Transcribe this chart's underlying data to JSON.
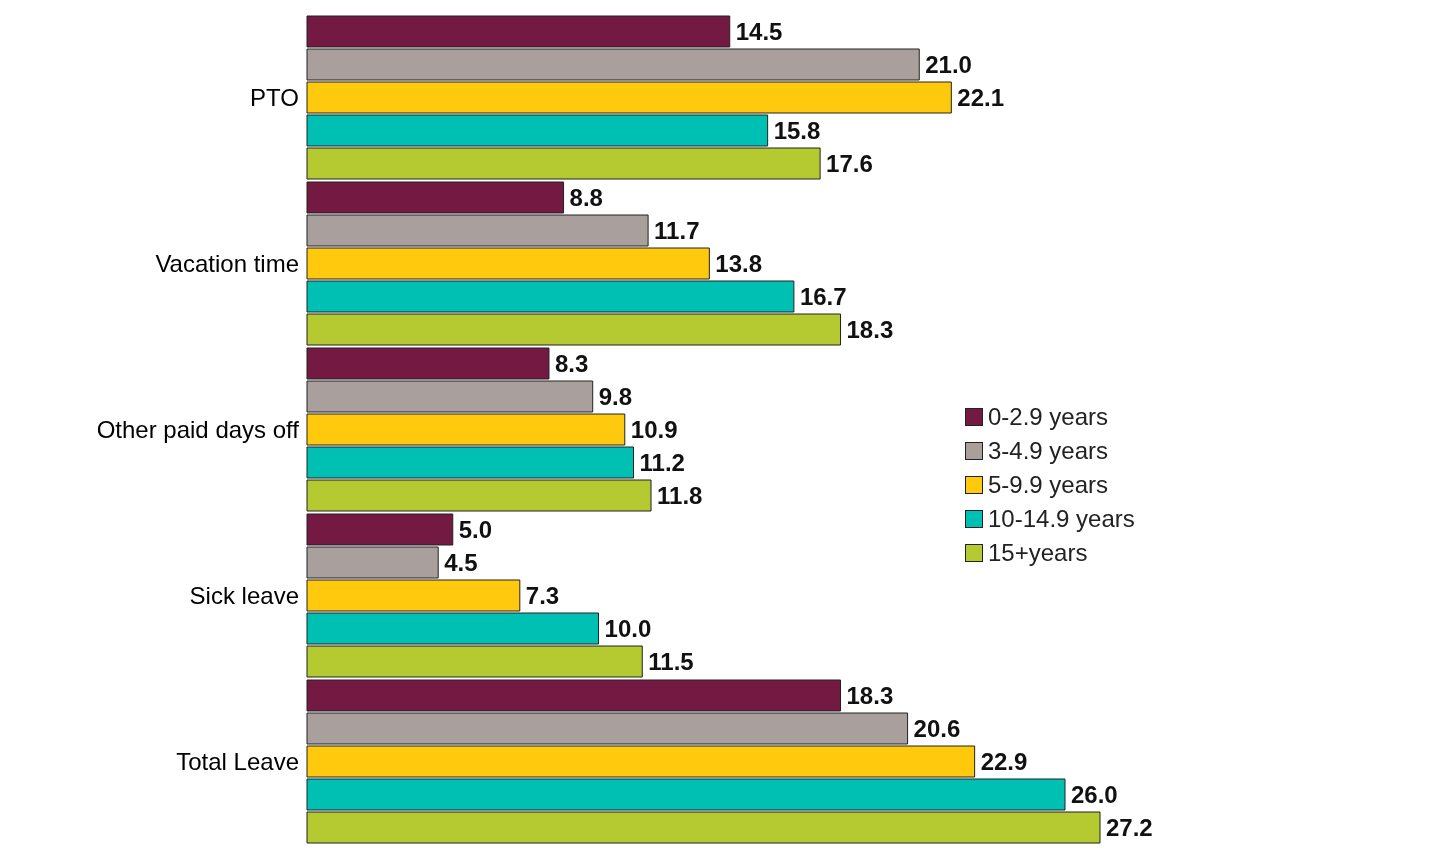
{
  "chart_data": {
    "type": "bar",
    "orientation": "horizontal",
    "legend": "right",
    "categories": [
      "PTO",
      "Vacation time",
      "Other paid days off",
      "Sick leave",
      "Total Leave"
    ],
    "series": [
      {
        "name": "0-2.9 years",
        "color": "#731942",
        "values": [
          14.5,
          8.8,
          8.3,
          5.0,
          18.3
        ],
        "value_labels": [
          "14.5",
          "8.8",
          "8.3",
          "5.0",
          "18.3"
        ]
      },
      {
        "name": "3-4.9 years",
        "color": "#a9a09e",
        "values": [
          21.0,
          11.7,
          9.8,
          4.5,
          20.6
        ],
        "value_labels": [
          "21.0",
          "11.7",
          "9.8",
          "4.5",
          "20.6"
        ]
      },
      {
        "name": "5-9.9 years",
        "color": "#ffc90e",
        "values": [
          22.1,
          13.8,
          10.9,
          7.3,
          22.9
        ],
        "value_labels": [
          "22.1",
          "13.8",
          "10.9",
          "7.3",
          "22.9"
        ]
      },
      {
        "name": "10-14.9 years",
        "color": "#00bfb3",
        "values": [
          15.8,
          16.7,
          11.2,
          10.0,
          26.0
        ],
        "value_labels": [
          "15.8",
          "16.7",
          "11.2",
          "10.0",
          "26.0"
        ]
      },
      {
        "name": "15+years",
        "color": "#b5c930",
        "values": [
          17.6,
          18.3,
          11.8,
          11.5,
          27.2
        ],
        "value_labels": [
          "17.6",
          "18.3",
          "11.8",
          "11.5",
          "27.2"
        ]
      }
    ]
  }
}
